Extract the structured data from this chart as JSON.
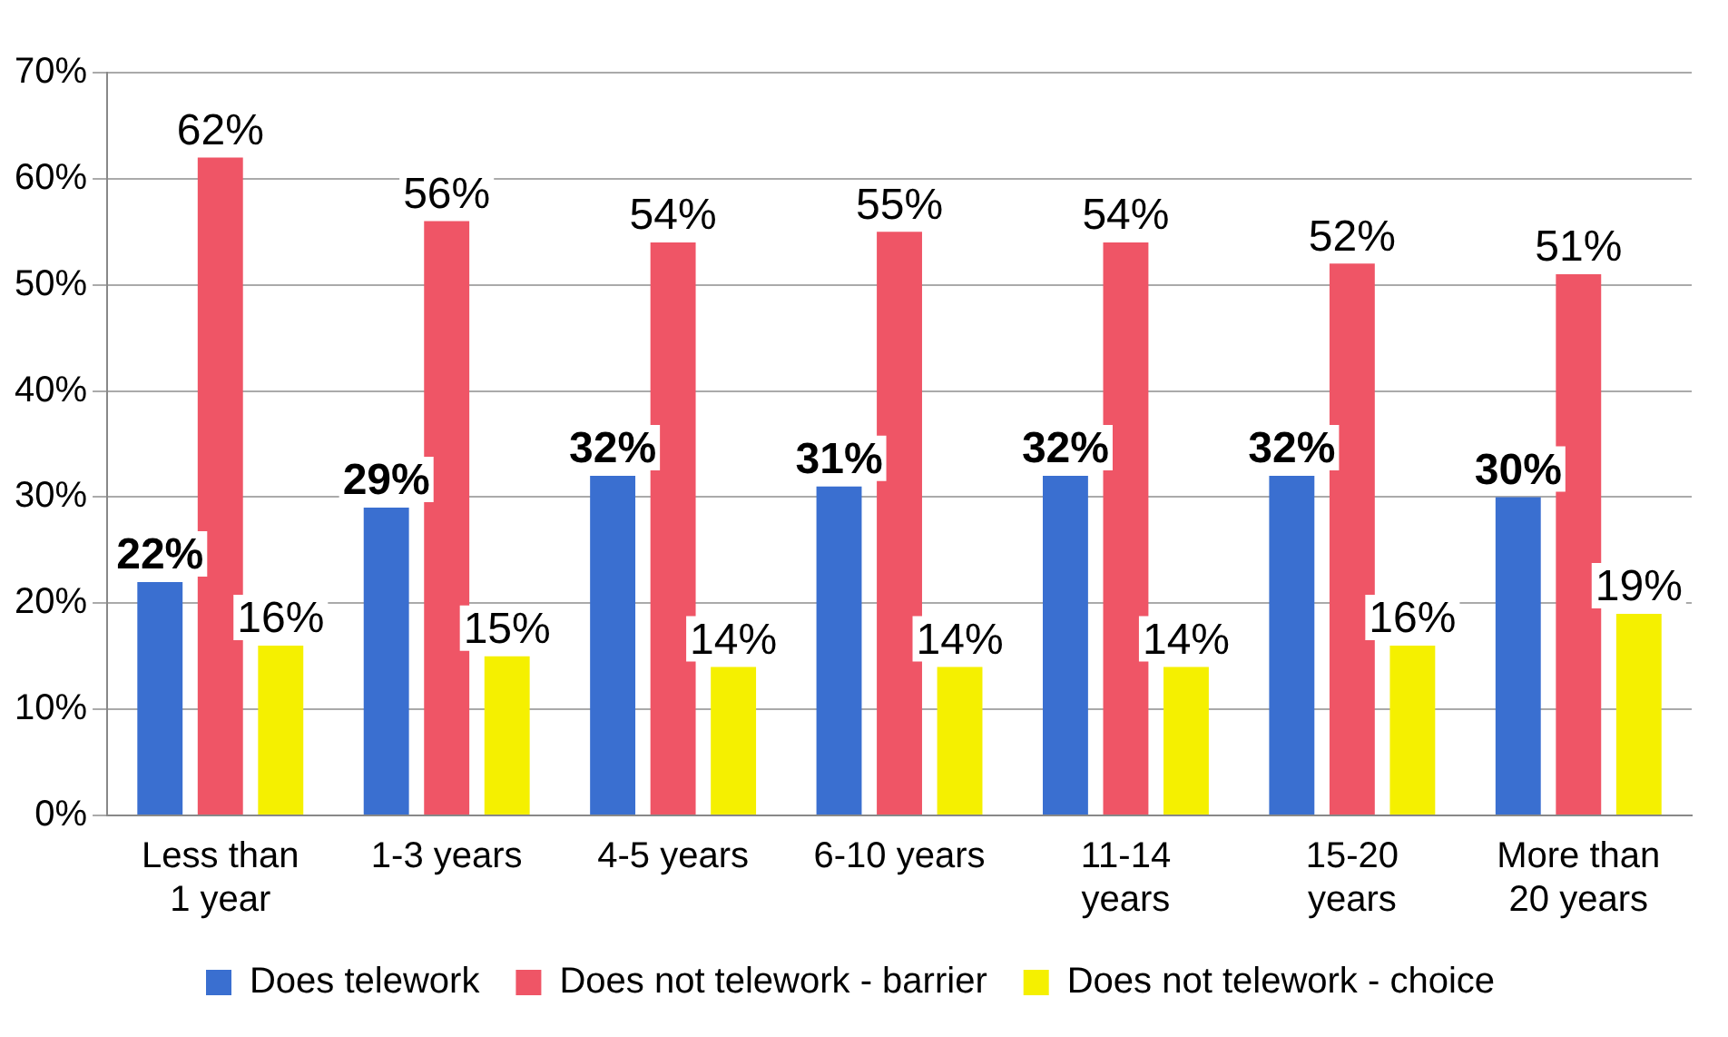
{
  "chart_data": {
    "type": "bar",
    "categories": [
      "Less than 1 year",
      "1-3 years",
      "4-5 years",
      "6-10 years",
      "11-14 years",
      "15-20 years",
      "More than 20 years"
    ],
    "series": [
      {
        "name": "Does telework",
        "color": "#3a6fd0",
        "values": [
          22,
          29,
          32,
          31,
          32,
          32,
          30
        ],
        "value_labels": [
          "22%",
          "29%",
          "32%",
          "31%",
          "32%",
          "32%",
          "30%"
        ]
      },
      {
        "name": "Does not telework - barrier",
        "color": "#ef5566",
        "values": [
          62,
          56,
          54,
          55,
          54,
          52,
          51
        ],
        "value_labels": [
          "62%",
          "56%",
          "54%",
          "55%",
          "54%",
          "52%",
          "51%"
        ]
      },
      {
        "name": "Does not telework - choice",
        "color": "#f5f000",
        "values": [
          16,
          15,
          14,
          14,
          14,
          16,
          19
        ],
        "value_labels": [
          "16%",
          "15%",
          "14%",
          "14%",
          "14%",
          "16%",
          "19%"
        ]
      }
    ],
    "ylim": [
      0,
      70
    ],
    "yticks": [
      {
        "value": 0,
        "label": "0%"
      },
      {
        "value": 10,
        "label": "10%"
      },
      {
        "value": 20,
        "label": "20%"
      },
      {
        "value": 30,
        "label": "30%"
      },
      {
        "value": 40,
        "label": "40%"
      },
      {
        "value": 50,
        "label": "50%"
      },
      {
        "value": 60,
        "label": "60%"
      },
      {
        "value": 70,
        "label": "70%"
      }
    ],
    "grid": "y",
    "legend": "bottom"
  }
}
